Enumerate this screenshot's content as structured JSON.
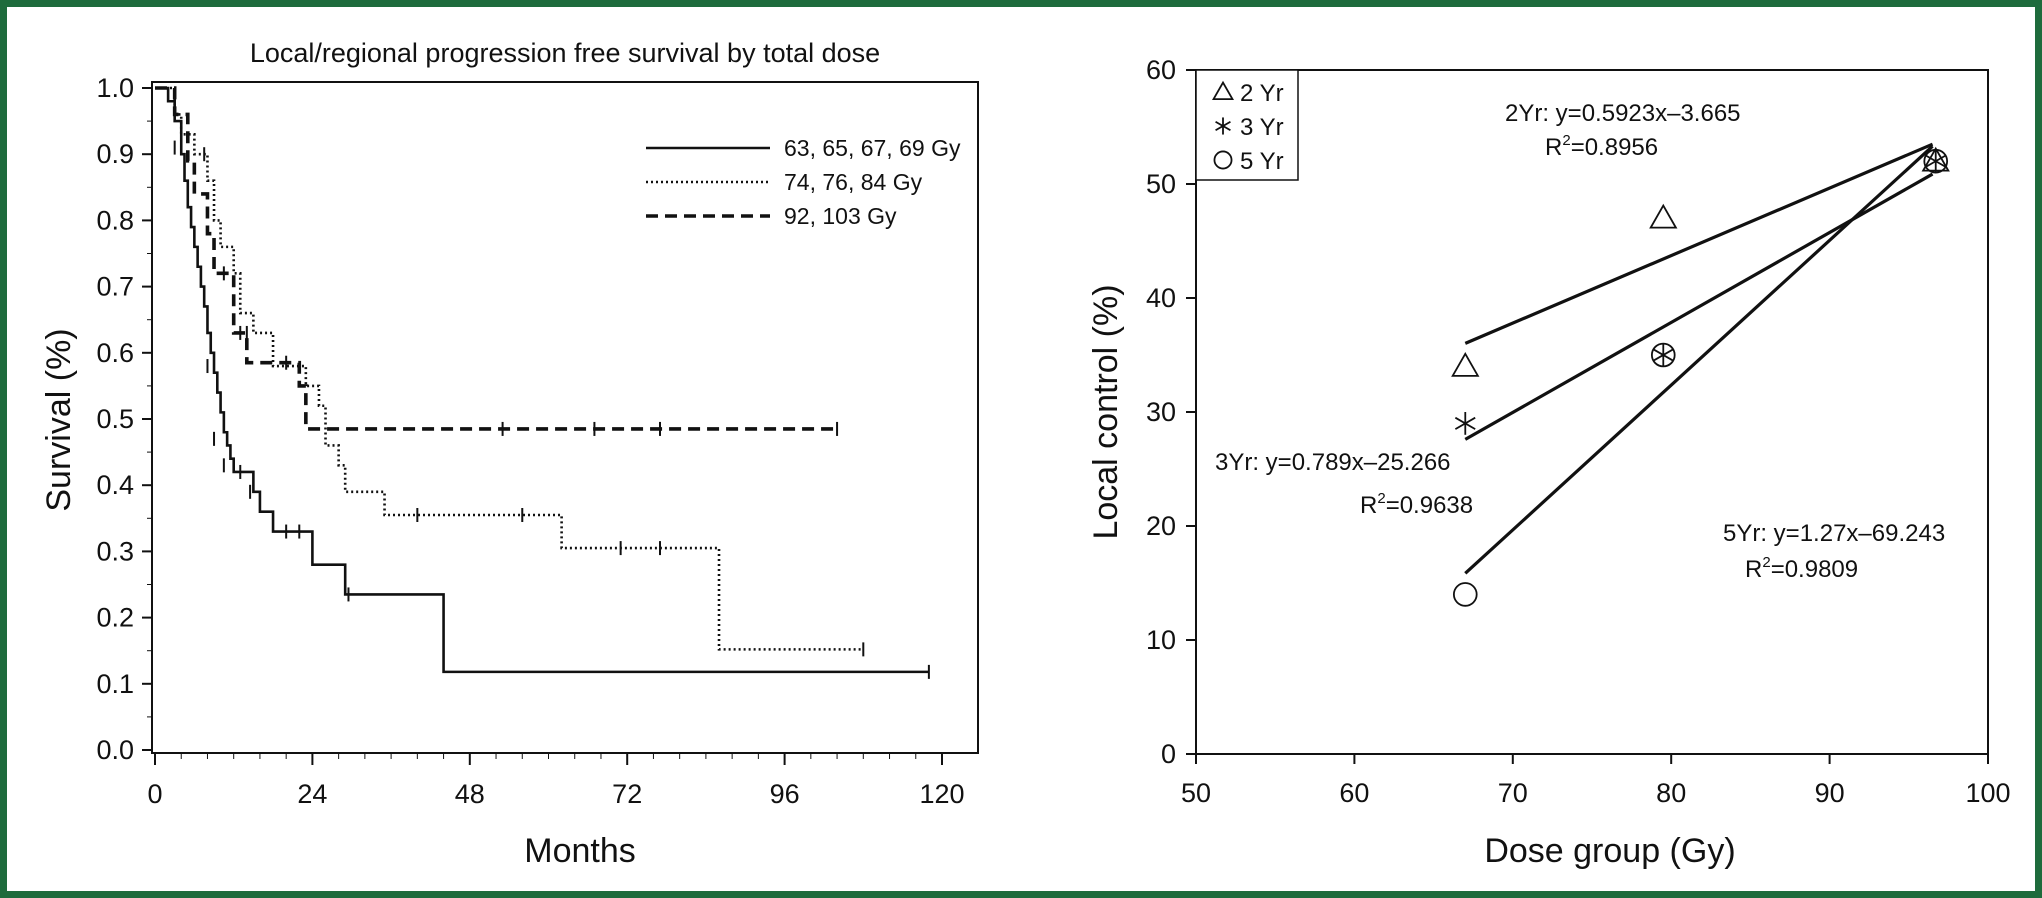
{
  "border_color": "#1e6b3c",
  "chart_data": [
    {
      "type": "line",
      "subtype": "kaplan-meier step",
      "title": "Local/regional progression free survival by total dose",
      "xlabel": "Months",
      "ylabel": "Survival (%)",
      "xlim": [
        0,
        120
      ],
      "ylim": [
        0,
        1.0
      ],
      "xticks": [
        "0",
        "24",
        "48",
        "72",
        "96",
        "120"
      ],
      "yticks": [
        "0.0",
        "0.1",
        "0.2",
        "0.3",
        "0.4",
        "0.5",
        "0.6",
        "0.7",
        "0.8",
        "0.9",
        "1.0"
      ],
      "legend_position": "top-right",
      "series": [
        {
          "name": "63, 65, 67, 69 Gy",
          "line_style": "solid",
          "steps": [
            [
              0,
              1.0
            ],
            [
              2,
              0.98
            ],
            [
              3,
              0.95
            ],
            [
              4,
              0.9
            ],
            [
              4.5,
              0.86
            ],
            [
              5,
              0.82
            ],
            [
              5.5,
              0.79
            ],
            [
              6,
              0.76
            ],
            [
              6.5,
              0.73
            ],
            [
              7,
              0.7
            ],
            [
              7.5,
              0.67
            ],
            [
              8,
              0.63
            ],
            [
              8.5,
              0.6
            ],
            [
              9,
              0.57
            ],
            [
              9.5,
              0.54
            ],
            [
              10,
              0.51
            ],
            [
              10.5,
              0.48
            ],
            [
              11,
              0.46
            ],
            [
              11.5,
              0.44
            ],
            [
              12,
              0.42
            ],
            [
              15,
              0.39
            ],
            [
              16,
              0.36
            ],
            [
              18,
              0.33
            ],
            [
              24,
              0.28
            ],
            [
              29,
              0.235
            ],
            [
              44,
              0.118
            ],
            [
              118,
              0.118
            ]
          ],
          "censored": [
            [
              3,
              0.91
            ],
            [
              8,
              0.58
            ],
            [
              9,
              0.47
            ],
            [
              10.5,
              0.43
            ],
            [
              13,
              0.42
            ],
            [
              14.5,
              0.39
            ],
            [
              20,
              0.33
            ],
            [
              22,
              0.33
            ],
            [
              29.5,
              0.235
            ],
            [
              118,
              0.118
            ]
          ]
        },
        {
          "name": "74, 76, 84 Gy",
          "line_style": "dotted",
          "steps": [
            [
              0,
              1.0
            ],
            [
              3,
              0.96
            ],
            [
              4,
              0.93
            ],
            [
              6,
              0.9
            ],
            [
              8,
              0.86
            ],
            [
              9,
              0.8
            ],
            [
              10,
              0.76
            ],
            [
              12,
              0.72
            ],
            [
              13,
              0.66
            ],
            [
              15,
              0.63
            ],
            [
              18,
              0.58
            ],
            [
              23,
              0.55
            ],
            [
              25,
              0.52
            ],
            [
              26,
              0.46
            ],
            [
              28,
              0.43
            ],
            [
              29,
              0.39
            ],
            [
              35,
              0.355
            ],
            [
              62,
              0.305
            ],
            [
              86,
              0.152
            ],
            [
              108,
              0.152
            ]
          ],
          "censored": [
            [
              7.5,
              0.9
            ],
            [
              14,
              0.63
            ],
            [
              40,
              0.355
            ],
            [
              56,
              0.355
            ],
            [
              71,
              0.305
            ],
            [
              77,
              0.305
            ],
            [
              108,
              0.152
            ]
          ]
        },
        {
          "name": "92, 103 Gy",
          "line_style": "dashed",
          "steps": [
            [
              0,
              1.0
            ],
            [
              3,
              0.96
            ],
            [
              5,
              0.89
            ],
            [
              6,
              0.84
            ],
            [
              8,
              0.78
            ],
            [
              9,
              0.72
            ],
            [
              12,
              0.63
            ],
            [
              14,
              0.585
            ],
            [
              22,
              0.55
            ],
            [
              23,
              0.485
            ],
            [
              104,
              0.485
            ]
          ],
          "censored": [
            [
              10.5,
              0.72
            ],
            [
              13,
              0.63
            ],
            [
              20,
              0.585
            ],
            [
              53,
              0.485
            ],
            [
              67,
              0.485
            ],
            [
              77,
              0.485
            ],
            [
              104,
              0.485
            ]
          ]
        }
      ]
    },
    {
      "type": "scatter",
      "xlabel": "Dose group (Gy)",
      "ylabel": "Local control (%)",
      "xlim": [
        50,
        100
      ],
      "ylim": [
        0,
        60
      ],
      "xticks": [
        "50",
        "60",
        "70",
        "80",
        "90",
        "100"
      ],
      "yticks": [
        "0",
        "10",
        "20",
        "30",
        "40",
        "50",
        "60"
      ],
      "legend_position": "top-left",
      "series": [
        {
          "name": "2 Yr",
          "marker": "triangle",
          "points": [
            [
              67,
              34
            ],
            [
              79.5,
              47
            ],
            [
              96.7,
              52
            ]
          ],
          "fit": {
            "slope": 0.5923,
            "intercept": -3.665,
            "x_range": [
              67,
              96.5
            ]
          }
        },
        {
          "name": "3 Yr",
          "marker": "asterisk",
          "points": [
            [
              67,
              29
            ],
            [
              79.5,
              35
            ],
            [
              96.7,
              52
            ]
          ],
          "fit": {
            "slope": 0.789,
            "intercept": -25.266,
            "x_range": [
              67,
              96.5
            ]
          }
        },
        {
          "name": "5 Yr",
          "marker": "circle",
          "points": [
            [
              67,
              14
            ],
            [
              79.5,
              35
            ],
            [
              96.7,
              52
            ]
          ],
          "fit": {
            "slope": 1.27,
            "intercept": -69.243,
            "x_range": [
              67,
              96.5
            ]
          }
        }
      ],
      "annotations": [
        {
          "line1": "2Yr: y=0.5923x–3.665",
          "r2_prefix": "R",
          "r2_sup": "2",
          "r2_value": "=0.8956"
        },
        {
          "line1": "3Yr: y=0.789x–25.266",
          "r2_prefix": "R",
          "r2_sup": "2",
          "r2_value": "=0.9638"
        },
        {
          "line1": "5Yr: y=1.27x–69.243",
          "r2_prefix": "R",
          "r2_sup": "2",
          "r2_value": "=0.9809"
        }
      ]
    }
  ]
}
